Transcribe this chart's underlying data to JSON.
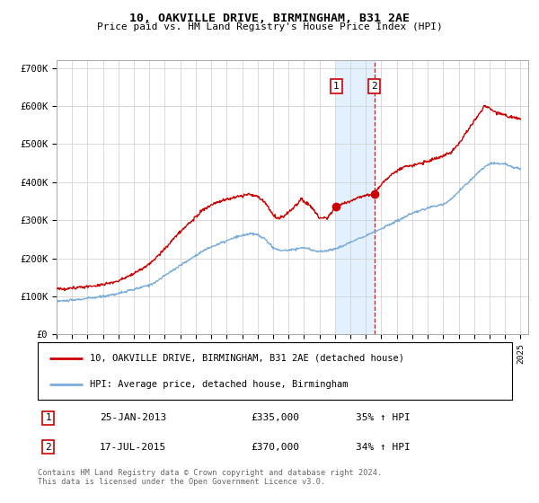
{
  "title1": "10, OAKVILLE DRIVE, BIRMINGHAM, B31 2AE",
  "title2": "Price paid vs. HM Land Registry's House Price Index (HPI)",
  "legend_line1": "10, OAKVILLE DRIVE, BIRMINGHAM, B31 2AE (detached house)",
  "legend_line2": "HPI: Average price, detached house, Birmingham",
  "transaction1_date": "25-JAN-2013",
  "transaction1_price": "£335,000",
  "transaction1_hpi": "35% ↑ HPI",
  "transaction2_date": "17-JUL-2015",
  "transaction2_price": "£370,000",
  "transaction2_hpi": "34% ↑ HPI",
  "footer": "Contains HM Land Registry data © Crown copyright and database right 2024.\nThis data is licensed under the Open Government Licence v3.0.",
  "red_color": "#cc0000",
  "blue_color": "#7aacda",
  "bg_color": "#ffffff",
  "grid_color": "#cccccc",
  "shade_color": "#ddeeff",
  "marker1_x": 2013.07,
  "marker1_y": 335000,
  "marker2_x": 2015.54,
  "marker2_y": 370000,
  "ylim": [
    0,
    720000
  ],
  "xlim_start": 1995,
  "xlim_end": 2025.5,
  "hpi_keypoints": [
    [
      1995.0,
      88000
    ],
    [
      1995.5,
      88500
    ],
    [
      1996.0,
      90000
    ],
    [
      1996.5,
      92000
    ],
    [
      1997.0,
      95000
    ],
    [
      1997.5,
      97000
    ],
    [
      1998.0,
      100000
    ],
    [
      1998.5,
      104000
    ],
    [
      1999.0,
      108000
    ],
    [
      1999.5,
      113000
    ],
    [
      2000.0,
      118000
    ],
    [
      2000.5,
      124000
    ],
    [
      2001.0,
      130000
    ],
    [
      2001.5,
      140000
    ],
    [
      2002.0,
      155000
    ],
    [
      2002.5,
      168000
    ],
    [
      2003.0,
      182000
    ],
    [
      2003.5,
      194000
    ],
    [
      2004.0,
      208000
    ],
    [
      2004.5,
      220000
    ],
    [
      2005.0,
      230000
    ],
    [
      2005.5,
      238000
    ],
    [
      2006.0,
      246000
    ],
    [
      2006.5,
      254000
    ],
    [
      2007.0,
      260000
    ],
    [
      2007.5,
      265000
    ],
    [
      2008.0,
      262000
    ],
    [
      2008.5,
      250000
    ],
    [
      2009.0,
      228000
    ],
    [
      2009.5,
      220000
    ],
    [
      2010.0,
      222000
    ],
    [
      2010.5,
      225000
    ],
    [
      2011.0,
      228000
    ],
    [
      2011.5,
      222000
    ],
    [
      2012.0,
      218000
    ],
    [
      2012.5,
      220000
    ],
    [
      2013.0,
      225000
    ],
    [
      2013.5,
      232000
    ],
    [
      2014.0,
      242000
    ],
    [
      2014.5,
      252000
    ],
    [
      2015.0,
      260000
    ],
    [
      2015.5,
      268000
    ],
    [
      2016.0,
      278000
    ],
    [
      2016.5,
      288000
    ],
    [
      2017.0,
      298000
    ],
    [
      2017.5,
      308000
    ],
    [
      2018.0,
      318000
    ],
    [
      2018.5,
      325000
    ],
    [
      2019.0,
      332000
    ],
    [
      2019.5,
      338000
    ],
    [
      2020.0,
      342000
    ],
    [
      2020.5,
      355000
    ],
    [
      2021.0,
      375000
    ],
    [
      2021.5,
      395000
    ],
    [
      2022.0,
      415000
    ],
    [
      2022.5,
      435000
    ],
    [
      2023.0,
      448000
    ],
    [
      2023.5,
      450000
    ],
    [
      2024.0,
      448000
    ],
    [
      2024.5,
      440000
    ],
    [
      2025.0,
      435000
    ]
  ],
  "red_keypoints": [
    [
      1995.0,
      120000
    ],
    [
      1995.5,
      121000
    ],
    [
      1996.0,
      122000
    ],
    [
      1996.5,
      124000
    ],
    [
      1997.0,
      126000
    ],
    [
      1997.5,
      128000
    ],
    [
      1998.0,
      132000
    ],
    [
      1998.5,
      136000
    ],
    [
      1999.0,
      141000
    ],
    [
      1999.5,
      150000
    ],
    [
      2000.0,
      160000
    ],
    [
      2000.5,
      172000
    ],
    [
      2001.0,
      185000
    ],
    [
      2001.5,
      205000
    ],
    [
      2002.0,
      225000
    ],
    [
      2002.5,
      248000
    ],
    [
      2003.0,
      270000
    ],
    [
      2003.5,
      290000
    ],
    [
      2004.0,
      310000
    ],
    [
      2004.5,
      328000
    ],
    [
      2005.0,
      340000
    ],
    [
      2005.5,
      348000
    ],
    [
      2006.0,
      355000
    ],
    [
      2006.5,
      360000
    ],
    [
      2007.0,
      365000
    ],
    [
      2007.5,
      368000
    ],
    [
      2008.0,
      362000
    ],
    [
      2008.5,
      345000
    ],
    [
      2009.0,
      315000
    ],
    [
      2009.3,
      305000
    ],
    [
      2009.7,
      310000
    ],
    [
      2010.0,
      320000
    ],
    [
      2010.5,
      340000
    ],
    [
      2010.8,
      355000
    ],
    [
      2011.0,
      350000
    ],
    [
      2011.5,
      335000
    ],
    [
      2012.0,
      305000
    ],
    [
      2012.5,
      305000
    ],
    [
      2013.07,
      335000
    ],
    [
      2013.5,
      345000
    ],
    [
      2014.0,
      350000
    ],
    [
      2014.5,
      360000
    ],
    [
      2015.54,
      370000
    ],
    [
      2016.0,
      395000
    ],
    [
      2016.5,
      415000
    ],
    [
      2017.0,
      430000
    ],
    [
      2017.5,
      440000
    ],
    [
      2018.0,
      445000
    ],
    [
      2018.5,
      448000
    ],
    [
      2019.0,
      455000
    ],
    [
      2019.5,
      462000
    ],
    [
      2020.0,
      468000
    ],
    [
      2020.5,
      478000
    ],
    [
      2021.0,
      500000
    ],
    [
      2021.5,
      530000
    ],
    [
      2022.0,
      560000
    ],
    [
      2022.5,
      590000
    ],
    [
      2022.7,
      600000
    ],
    [
      2023.0,
      595000
    ],
    [
      2023.3,
      585000
    ],
    [
      2023.7,
      580000
    ],
    [
      2024.0,
      575000
    ],
    [
      2024.5,
      570000
    ],
    [
      2025.0,
      568000
    ]
  ]
}
